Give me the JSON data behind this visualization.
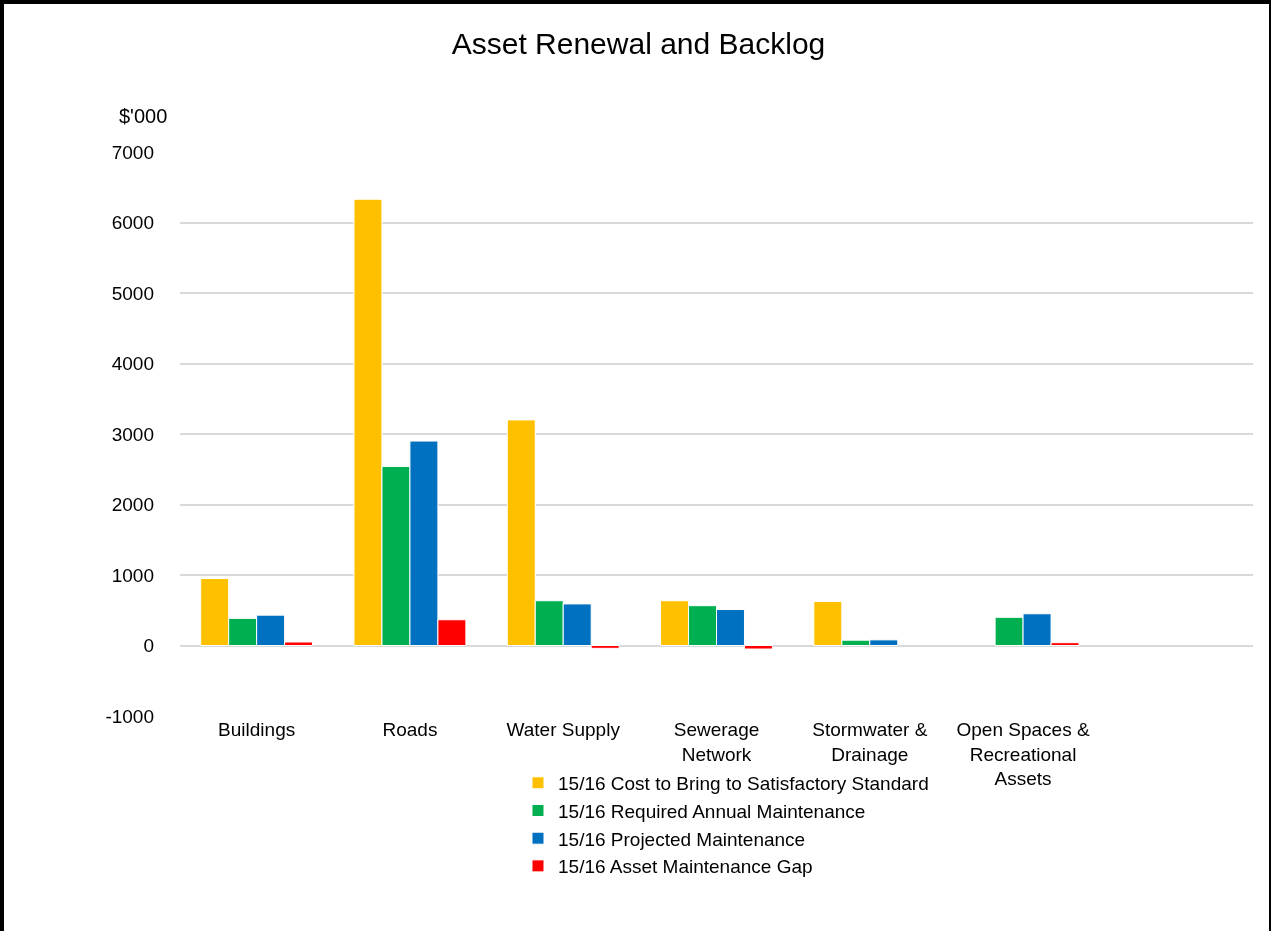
{
  "chart_data": {
    "type": "bar",
    "title": "Asset Renewal and Backlog",
    "ylabel": "$'000",
    "categories": [
      "Buildings",
      "Roads",
      "Water Supply",
      "Sewerage Network",
      "Stormwater & Drainage",
      "Open Spaces & Recreational Assets",
      null
    ],
    "series": [
      {
        "name": "15/16 Cost to Bring to Satisfactory Standard",
        "color": "#ffc000",
        "values": [
          950,
          6330,
          3200,
          635,
          625,
          null,
          null
        ]
      },
      {
        "name": "15/16 Required Annual Maintenance",
        "color": "#00b050",
        "values": [
          385,
          2540,
          635,
          565,
          75,
          400,
          null
        ]
      },
      {
        "name": "15/16 Projected Maintenance",
        "color": "#0070c0",
        "values": [
          430,
          2900,
          590,
          510,
          80,
          450,
          null
        ]
      },
      {
        "name": "15/16 Asset Maintenance Gap",
        "color": "#ff0000",
        "values": [
          50,
          365,
          -40,
          -50,
          null,
          40,
          null
        ]
      }
    ],
    "ylim": [
      -1000,
      7000
    ],
    "yticks": [
      -1000,
      0,
      1000,
      2000,
      3000,
      4000,
      5000,
      6000,
      7000
    ],
    "grid": "y",
    "legend": "bottom"
  }
}
